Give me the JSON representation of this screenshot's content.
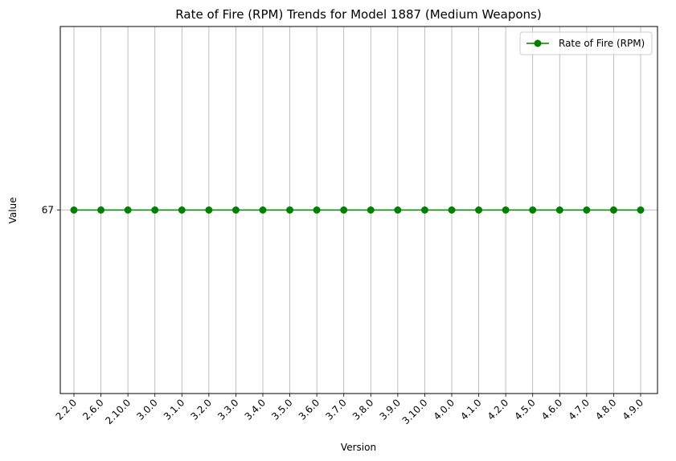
{
  "chart_data": {
    "type": "line",
    "title": "Rate of Fire (RPM) Trends for Model 1887 (Medium Weapons)",
    "xlabel": "Version",
    "ylabel": "Value",
    "categories": [
      "2.2.0",
      "2.6.0",
      "2.10.0",
      "3.0.0",
      "3.1.0",
      "3.2.0",
      "3.3.0",
      "3.4.0",
      "3.5.0",
      "3.6.0",
      "3.7.0",
      "3.8.0",
      "3.9.0",
      "3.10.0",
      "4.0.0",
      "4.1.0",
      "4.2.0",
      "4.5.0",
      "4.6.0",
      "4.7.0",
      "4.8.0",
      "4.9.0"
    ],
    "series": [
      {
        "name": "Rate of Fire (RPM)",
        "color": "#008000",
        "values": [
          67,
          67,
          67,
          67,
          67,
          67,
          67,
          67,
          67,
          67,
          67,
          67,
          67,
          67,
          67,
          67,
          67,
          67,
          67,
          67,
          67,
          67
        ]
      }
    ],
    "yticks": [
      67
    ],
    "ylim": [
      66.5,
      67.5
    ],
    "grid": true,
    "legend": "top-right"
  }
}
